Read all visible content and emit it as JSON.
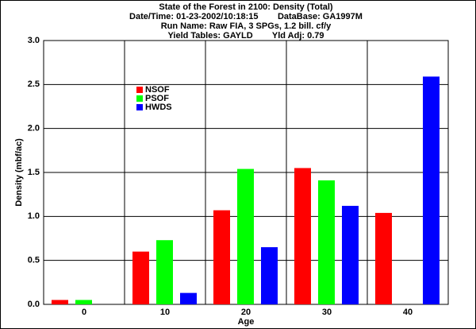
{
  "chart_data": {
    "type": "bar",
    "title": "State of the Forest in 2100: Density (Total)",
    "subtitle": [
      "Date/Time: 01-23-2002/10:18:15        DataBase: GA1997M",
      "Run Name: Raw FIA, 3 SPGs, 1.2 bill. cf/y",
      "Yield Tables: GAYLD        Yld Adj: 0.79"
    ],
    "x_label": "Age",
    "y_label": "Density (mbf/ac)",
    "categories": [
      "0",
      "10",
      "20",
      "30",
      "40"
    ],
    "series": [
      {
        "name": "NSOF",
        "color": "#ff0000",
        "values": [
          0.05,
          0.6,
          1.07,
          1.55,
          1.04
        ]
      },
      {
        "name": "PSOF",
        "color": "#00ff00",
        "values": [
          0.05,
          0.73,
          1.54,
          1.41,
          0
        ]
      },
      {
        "name": "HWDS",
        "color": "#0000ff",
        "values": [
          0,
          0.13,
          0.65,
          1.12,
          2.59
        ]
      }
    ],
    "ylim": [
      0,
      3
    ],
    "yticks": [
      {
        "value": 0,
        "label": "0.0"
      },
      0.5,
      {
        "value": 1,
        "label": "1.0"
      },
      1.5,
      {
        "value": 2,
        "label": "2.0"
      },
      2.5,
      {
        "value": 3,
        "label": "3.0"
      }
    ],
    "grid": true,
    "legend": "upper-left"
  }
}
